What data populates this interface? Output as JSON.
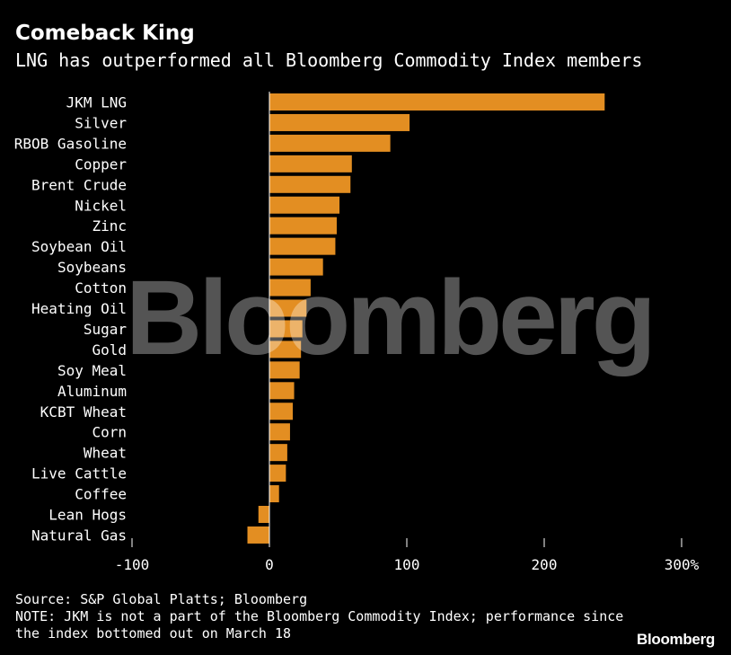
{
  "header": {
    "title": "Comeback King",
    "subtitle": "LNG has outperformed all Bloomberg Commodity Index members"
  },
  "colors": {
    "bar": "#E38E22",
    "axis": "#FFFFFF",
    "background": "#000000"
  },
  "chart_data": {
    "type": "bar",
    "orientation": "horizontal",
    "title": "Comeback King",
    "subtitle": "LNG has outperformed all Bloomberg Commodity Index members",
    "categories": [
      "JKM LNG",
      "Silver",
      "RBOB Gasoline",
      "Copper",
      "Brent Crude",
      "Nickel",
      "Zinc",
      "Soybean Oil",
      "Soybeans",
      "Cotton",
      "Heating Oil",
      "Sugar",
      "Gold",
      "Soy Meal",
      "Aluminum",
      "KCBT Wheat",
      "Corn",
      "Wheat",
      "Live Cattle",
      "Coffee",
      "Lean Hogs",
      "Natural Gas"
    ],
    "values": [
      244,
      102,
      88,
      60,
      59,
      51,
      49,
      48,
      39,
      30,
      27,
      24,
      23,
      22,
      18,
      17,
      15,
      13,
      12,
      7,
      -8,
      -16
    ],
    "xlim": [
      -100,
      300
    ],
    "xticks": [
      "-100",
      "0",
      "100",
      "200",
      "300%"
    ],
    "xtick_values": [
      -100,
      0,
      100,
      200,
      300
    ],
    "xlabel": "",
    "ylabel": "",
    "grid": false
  },
  "footer": {
    "source": "Source: S&P Global Platts; Bloomberg",
    "note_line1": "NOTE: JKM is not a part of the Bloomberg Commodity Index; performance since",
    "note_line2": "the index bottomed out on March 18"
  },
  "watermark": "Bloomberg",
  "logo": "Bloomberg"
}
